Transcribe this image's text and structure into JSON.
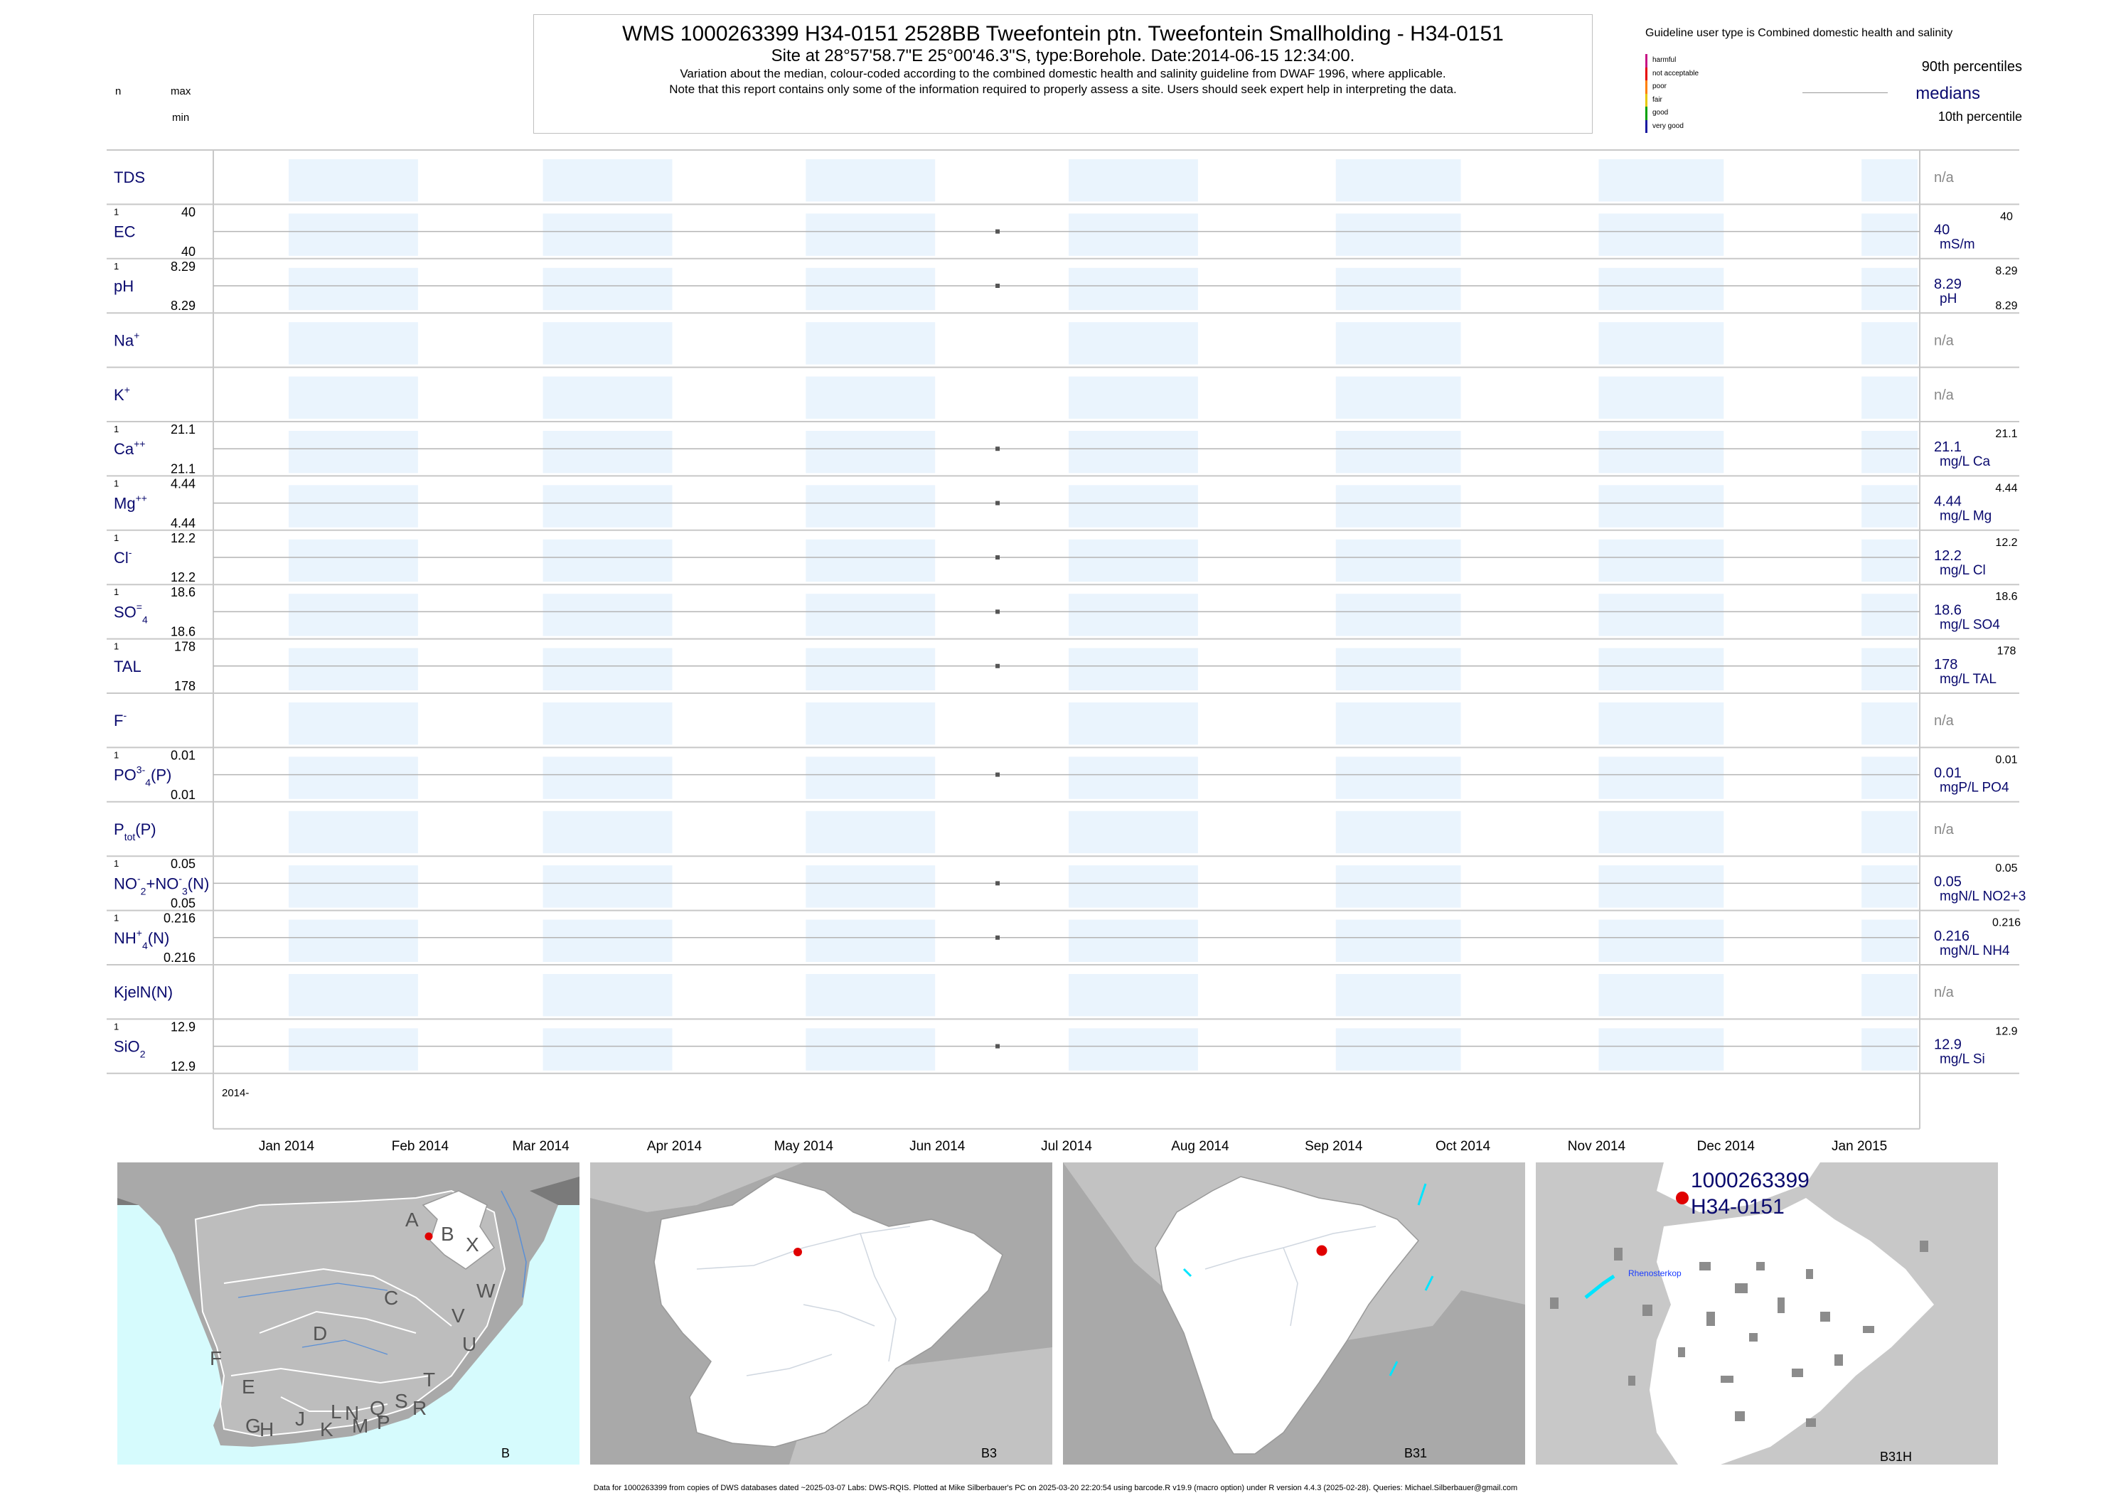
{
  "header": {
    "title": "WMS 1000263399 H34-0151 2528BB Tweefontein ptn. Tweefontein Smallholding - H34-0151",
    "site": "Site at 28°57'58.7\"E 25°00'46.3\"S, type:Borehole. Date:2014-06-15 12:34:00.",
    "note1": "Variation about the median,  colour-coded according to the combined domestic health and salinity guideline from DWAF 1996, where applicable.",
    "note2": "Note that this report contains only some of the information required to properly assess a site. Users should seek expert help in interpreting the data."
  },
  "legend": {
    "title": "Guideline user type is Combined domestic health and salinity",
    "levels": [
      {
        "label": "harmful",
        "color": "#c71585"
      },
      {
        "label": "not acceptable",
        "color": "#e60000"
      },
      {
        "label": "poor",
        "color": "#ff7f00"
      },
      {
        "label": "fair",
        "color": "#e6c800"
      },
      {
        "label": "good",
        "color": "#00a000"
      },
      {
        "label": "very good",
        "color": "#1a1aa0"
      }
    ],
    "p90": "90th percentiles",
    "medians": "medians",
    "p10": "10th percentile"
  },
  "left_header": {
    "n": "n",
    "max": "max",
    "min": "min"
  },
  "chart_data": {
    "type": "scatter",
    "x_axis": {
      "range": [
        "2013-12-15",
        "2015-01-15"
      ],
      "year_label": "2014-",
      "ticks": [
        "Jan 2014",
        "Feb 2014",
        "Mar 2014",
        "Apr 2014",
        "May 2014",
        "Jun 2014",
        "Jul 2014",
        "Aug 2014",
        "Sep 2014",
        "Oct 2014",
        "Nov 2014",
        "Dec 2014",
        "Jan 2015"
      ],
      "tick_dates": [
        "2014-01-01",
        "2014-02-01",
        "2014-03-01",
        "2014-04-01",
        "2014-05-01",
        "2014-06-01",
        "2014-07-01",
        "2014-08-01",
        "2014-09-01",
        "2014-10-01",
        "2014-11-01",
        "2014-12-01",
        "2015-01-01"
      ],
      "shaded_months": [
        "2014-01",
        "2014-03",
        "2014-05",
        "2014-07",
        "2014-09",
        "2014-11",
        "2015-01"
      ]
    },
    "sample_date": "2014-06-15",
    "series": [
      {
        "name": "TDS",
        "label": "TDS",
        "sup": "",
        "sub": "",
        "tail": "",
        "n": "",
        "max": "",
        "min": "",
        "median": "",
        "p90": "",
        "p10": "",
        "unit": "",
        "na": "n/a"
      },
      {
        "name": "EC",
        "label": "EC",
        "sup": "",
        "sub": "",
        "tail": "",
        "n": "1",
        "max": "40",
        "min": "40",
        "median": "40",
        "p90": "40",
        "p10": "",
        "unit": "mS/m",
        "na": ""
      },
      {
        "name": "pH",
        "label": "pH",
        "sup": "",
        "sub": "",
        "tail": "",
        "n": "1",
        "max": "8.29",
        "min": "8.29",
        "median": "8.29",
        "p90": "8.29",
        "p10": "8.29",
        "unit": "pH",
        "na": ""
      },
      {
        "name": "Na+",
        "label": "Na",
        "sup": "+",
        "sub": "",
        "tail": "",
        "n": "",
        "max": "",
        "min": "",
        "median": "",
        "p90": "",
        "p10": "",
        "unit": "",
        "na": "n/a"
      },
      {
        "name": "K+",
        "label": "K",
        "sup": "+",
        "sub": "",
        "tail": "",
        "n": "",
        "max": "",
        "min": "",
        "median": "",
        "p90": "",
        "p10": "",
        "unit": "",
        "na": "n/a"
      },
      {
        "name": "Ca++",
        "label": "Ca",
        "sup": "++",
        "sub": "",
        "tail": "",
        "n": "1",
        "max": "21.1",
        "min": "21.1",
        "median": "21.1",
        "p90": "21.1",
        "p10": "",
        "unit": "mg/L Ca",
        "na": ""
      },
      {
        "name": "Mg++",
        "label": "Mg",
        "sup": "++",
        "sub": "",
        "tail": "",
        "n": "1",
        "max": "4.44",
        "min": "4.44",
        "median": "4.44",
        "p90": "4.44",
        "p10": "",
        "unit": "mg/L Mg",
        "na": ""
      },
      {
        "name": "Cl-",
        "label": "Cl",
        "sup": "-",
        "sub": "",
        "tail": "",
        "n": "1",
        "max": "12.2",
        "min": "12.2",
        "median": "12.2",
        "p90": "12.2",
        "p10": "",
        "unit": "mg/L Cl",
        "na": ""
      },
      {
        "name": "SO4=",
        "label": "SO",
        "sup": "=",
        "sub": "4",
        "tail": "",
        "n": "1",
        "max": "18.6",
        "min": "18.6",
        "median": "18.6",
        "p90": "18.6",
        "p10": "",
        "unit": "mg/L SO4",
        "na": ""
      },
      {
        "name": "TAL",
        "label": "TAL",
        "sup": "",
        "sub": "",
        "tail": "",
        "n": "1",
        "max": "178",
        "min": "178",
        "median": "178",
        "p90": "178",
        "p10": "",
        "unit": "mg/L TAL",
        "na": ""
      },
      {
        "name": "F-",
        "label": "F",
        "sup": "-",
        "sub": "",
        "tail": "",
        "n": "",
        "max": "",
        "min": "",
        "median": "",
        "p90": "",
        "p10": "",
        "unit": "",
        "na": "n/a"
      },
      {
        "name": "PO4(P)",
        "label": "PO",
        "sup": "3-",
        "sub": "4",
        "tail": "(P)",
        "n": "1",
        "max": "0.01",
        "min": "0.01",
        "median": "0.01",
        "p90": "0.01",
        "p10": "",
        "unit": "mgP/L PO4",
        "na": ""
      },
      {
        "name": "Ptot(P)",
        "label": "P",
        "sup": "",
        "sub": "tot",
        "tail": "(P)",
        "n": "",
        "max": "",
        "min": "",
        "median": "",
        "p90": "",
        "p10": "",
        "unit": "",
        "na": "n/a"
      },
      {
        "name": "NO2+NO3(N)",
        "label": "NO",
        "sup": "-",
        "sub": "2",
        "tail": "+NO",
        "sup2": "-",
        "sub2": "3",
        "tail2": "(N)",
        "n": "1",
        "max": "0.05",
        "min": "0.05",
        "median": "0.05",
        "p90": "0.05",
        "p10": "",
        "unit": "mgN/L NO2+3",
        "na": ""
      },
      {
        "name": "NH4(N)",
        "label": "NH",
        "sup": "+",
        "sub": "4",
        "tail": "(N)",
        "n": "1",
        "max": "0.216",
        "min": "0.216",
        "median": "0.216",
        "p90": "0.216",
        "p10": "",
        "unit": "mgN/L NH4",
        "na": ""
      },
      {
        "name": "KjelN(N)",
        "label": "KjelN(N)",
        "sup": "",
        "sub": "",
        "tail": "",
        "n": "",
        "max": "",
        "min": "",
        "median": "",
        "p90": "",
        "p10": "",
        "unit": "",
        "na": "n/a"
      },
      {
        "name": "SiO2",
        "label": "SiO",
        "sup": "",
        "sub": "2",
        "tail": "",
        "n": "1",
        "max": "12.9",
        "min": "12.9",
        "median": "12.9",
        "p90": "12.9",
        "p10": "",
        "unit": "mg/L Si",
        "na": ""
      }
    ]
  },
  "maps": [
    {
      "label": "B",
      "region_letters": [
        "A",
        "B",
        "X",
        "C",
        "W",
        "D",
        "V",
        "U",
        "F",
        "T",
        "E",
        "S",
        "R",
        "Q",
        "N",
        "L",
        "J",
        "M",
        "P",
        "G",
        "H",
        "K"
      ]
    },
    {
      "label": "B3"
    },
    {
      "label": "B31"
    },
    {
      "label": "B31H",
      "site_id": "1000263399",
      "site_code": "H34-0151",
      "place": "Rhenosterkop"
    }
  ],
  "colors": {
    "text_navy": "#0a0a6e",
    "month_shade": "#eaf4fd",
    "site_marker": "#e00000",
    "sea": "#d6fbfd"
  },
  "footer": "Data for 1000263399 from copies of DWS databases dated ~2025-03-07 Labs: DWS-RQIS. Plotted at Mike Silberbauer's PC on 2025-03-20 22:20:54 using barcode.R v19.9 (macro option) under R version 4.4.3 (2025-02-28). Queries: Michael.Silberbauer@gmail.com"
}
